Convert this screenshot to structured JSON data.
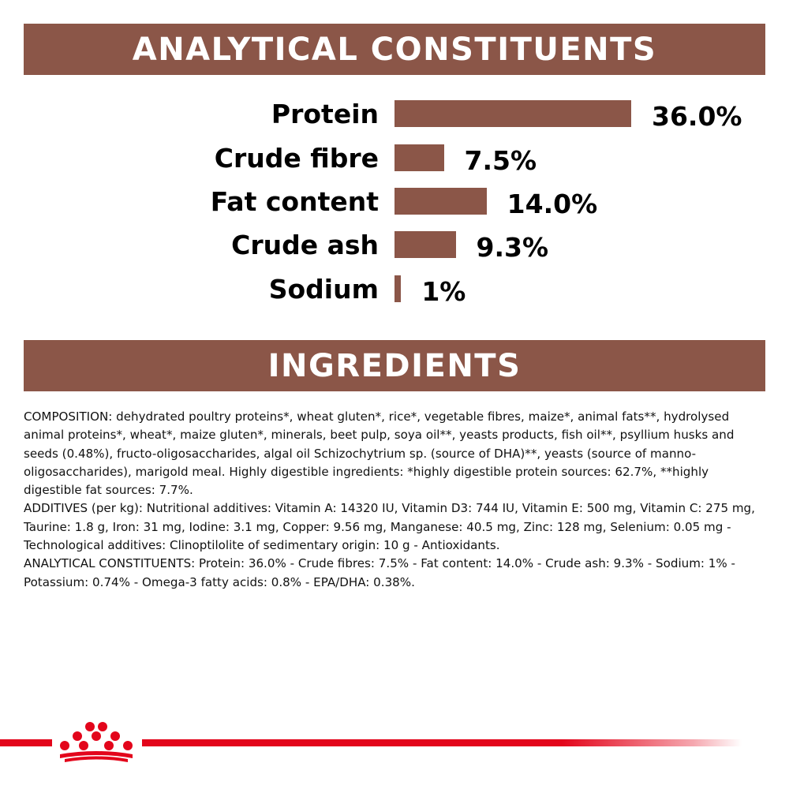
{
  "headings": {
    "analytical": "ANALYTICAL CONSTITUENTS",
    "ingredients": "INGREDIENTS"
  },
  "colors": {
    "bar": "#8b5648",
    "banner": "#8b5648",
    "brand_red": "#e3051b"
  },
  "chart_data": {
    "type": "bar",
    "orientation": "horizontal",
    "categories": [
      "Protein",
      "Crude fibre",
      "Fat content",
      "Crude ash",
      "Sodium"
    ],
    "values": [
      36.0,
      7.5,
      14.0,
      9.3,
      1
    ],
    "value_labels": [
      "36.0%",
      "7.5%",
      "14.0%",
      "9.3%",
      "1%"
    ],
    "unit": "%",
    "grid": false,
    "legend": "none"
  },
  "ingredients_text": {
    "composition": "COMPOSITION: dehydrated poultry proteins*, wheat gluten*, rice*, vegetable fibres, maize*, animal fats**, hydrolysed animal proteins*, wheat*, maize gluten*, minerals, beet pulp, soya oil**, yeasts products, fish oil**, psyllium husks and seeds (0.48%), fructo-oligosaccharides, algal oil Schizochytrium sp. (source of DHA)**, yeasts (source of manno-oligosaccharides), marigold meal. Highly digestible ingredients: *highly digestible protein sources: 62.7%, **highly digestible fat sources: 7.7%.",
    "additives": "ADDITIVES (per kg): Nutritional additives: Vitamin A: 14320 IU, Vitamin D3: 744 IU, Vitamin E: 500 mg, Vitamin C: 275 mg, Taurine: 1.8 g, Iron: 31 mg, Iodine: 3.1 mg, Copper: 9.56 mg, Manganese: 40.5 mg, Zinc: 128 mg, Selenium: 0.05 mg - Technological additives: Clinoptilolite of sedimentary origin: 10 g - Antioxidants.",
    "analytical": "ANALYTICAL CONSTITUENTS: Protein: 36.0% - Crude fibres: 7.5% - Fat content: 14.0% - Crude ash: 9.3% - Sodium: 1% - Potassium: 0.74% - Omega-3 fatty acids: 0.8% - EPA/DHA: 0.38%."
  },
  "logo": {
    "icon": "crown-logo-icon"
  }
}
